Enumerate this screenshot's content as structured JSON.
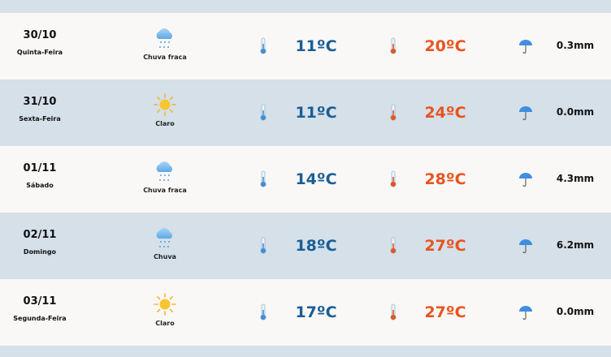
{
  "forecast": [
    {
      "date": "30/10",
      "weekday": "Quinta-Feira",
      "icon": "light-rain-icon",
      "condition": "Chuva fraca",
      "min": "11ºC",
      "max": "20ºC",
      "precip": "0.3mm"
    },
    {
      "date": "31/10",
      "weekday": "Sexta-Feira",
      "icon": "sun-icon",
      "condition": "Claro",
      "min": "11ºC",
      "max": "24ºC",
      "precip": "0.0mm"
    },
    {
      "date": "01/11",
      "weekday": "Sábado",
      "icon": "light-rain-icon",
      "condition": "Chuva fraca",
      "min": "14ºC",
      "max": "28ºC",
      "precip": "4.3mm"
    },
    {
      "date": "02/11",
      "weekday": "Domingo",
      "icon": "rain-icon",
      "condition": "Chuva",
      "min": "18ºC",
      "max": "27ºC",
      "precip": "6.2mm"
    },
    {
      "date": "03/11",
      "weekday": "Segunda-Feira",
      "icon": "sun-icon",
      "condition": "Claro",
      "min": "17ºC",
      "max": "27ºC",
      "precip": "0.0mm"
    }
  ],
  "colors": {
    "min_temp": "#1a5e96",
    "max_temp": "#e8541e",
    "row_light": "#faf8f6",
    "row_blue": "#d5e0e9"
  }
}
